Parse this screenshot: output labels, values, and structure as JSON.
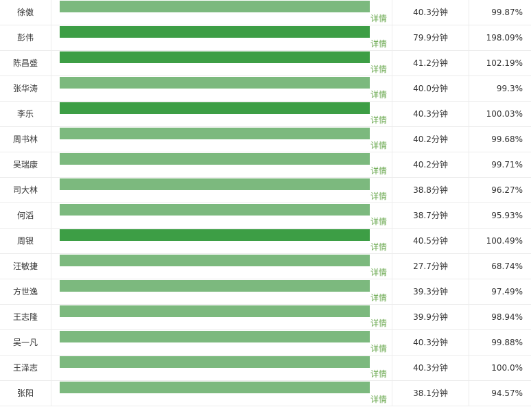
{
  "table": {
    "detail_label": "详情",
    "rows": [
      {
        "name": "徐傲",
        "time": "40.3分钟",
        "percent": "99.87%",
        "highlight": false
      },
      {
        "name": "彭伟",
        "time": "79.9分钟",
        "percent": "198.09%",
        "highlight": true
      },
      {
        "name": "陈昌盛",
        "time": "41.2分钟",
        "percent": "102.19%",
        "highlight": true
      },
      {
        "name": "张华涛",
        "time": "40.0分钟",
        "percent": "99.3%",
        "highlight": false
      },
      {
        "name": "李乐",
        "time": "40.3分钟",
        "percent": "100.03%",
        "highlight": true
      },
      {
        "name": "周书林",
        "time": "40.2分钟",
        "percent": "99.68%",
        "highlight": false
      },
      {
        "name": "吴瑞康",
        "time": "40.2分钟",
        "percent": "99.71%",
        "highlight": false
      },
      {
        "name": "司大林",
        "time": "38.8分钟",
        "percent": "96.27%",
        "highlight": false
      },
      {
        "name": "何滔",
        "time": "38.7分钟",
        "percent": "95.93%",
        "highlight": false
      },
      {
        "name": "周银",
        "time": "40.5分钟",
        "percent": "100.49%",
        "highlight": true
      },
      {
        "name": "汪敏捷",
        "time": "27.7分钟",
        "percent": "68.74%",
        "highlight": false
      },
      {
        "name": "方世逸",
        "time": "39.3分钟",
        "percent": "97.49%",
        "highlight": false
      },
      {
        "name": "王志隆",
        "time": "39.9分钟",
        "percent": "98.94%",
        "highlight": false
      },
      {
        "name": "吴一凡",
        "time": "40.3分钟",
        "percent": "99.88%",
        "highlight": false
      },
      {
        "name": "王泽志",
        "time": "40.3分钟",
        "percent": "100.0%",
        "highlight": false
      },
      {
        "name": "张阳",
        "time": "38.1分钟",
        "percent": "94.57%",
        "highlight": false
      }
    ]
  },
  "colors": {
    "bar_normal": "#7cb97e",
    "bar_highlight": "#3d9e45",
    "detail_link": "#6aa84f"
  }
}
